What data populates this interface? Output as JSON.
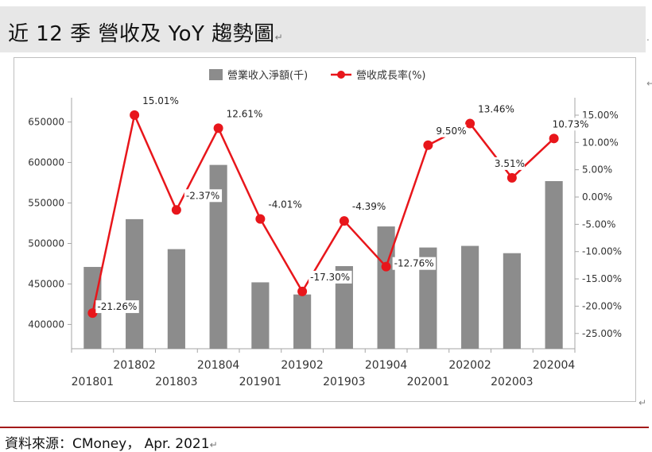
{
  "header": {
    "title": "近 12 季 營收及 YoY 趨勢圖"
  },
  "footer": {
    "source": "資料來源：CMoney， Apr. 2021"
  },
  "chart_data": {
    "type": "bar",
    "title": "",
    "categories": [
      "201801",
      "201802",
      "201803",
      "201804",
      "201901",
      "201902",
      "201903",
      "201904",
      "202001",
      "202002",
      "202003",
      "202004"
    ],
    "series": [
      {
        "name": "營業收入淨額(千)",
        "type": "bar",
        "axis": "left",
        "values": [
          471000,
          530000,
          493000,
          597000,
          452000,
          437000,
          472000,
          521000,
          495000,
          497000,
          488000,
          577000
        ]
      },
      {
        "name": "營收成長率(%)",
        "type": "line",
        "axis": "right",
        "values": [
          -21.26,
          15.01,
          -2.37,
          12.61,
          -4.01,
          -17.3,
          -4.39,
          -12.76,
          9.5,
          13.46,
          3.51,
          10.73
        ],
        "labels": [
          "-21.26%",
          "15.01%",
          "-2.37%",
          "12.61%",
          "-4.01%",
          "-17.30%",
          "-4.39%",
          "-12.76%",
          "9.50%",
          "13.46%",
          "3.51%",
          "10.73%"
        ]
      }
    ],
    "y_left": {
      "ylim": [
        370000,
        680000
      ],
      "ticks": [
        400000,
        450000,
        500000,
        550000,
        600000,
        650000
      ],
      "tick_labels": [
        "400000",
        "450000",
        "500000",
        "550000",
        "600000",
        "650000"
      ]
    },
    "y_right": {
      "ylim": [
        -27.8,
        18.2
      ],
      "ticks": [
        -25,
        -20,
        -15,
        -10,
        -5,
        0,
        5,
        10,
        15
      ],
      "tick_labels": [
        "-25.00%",
        "-20.00%",
        "-15.00%",
        "-10.00%",
        "-5.00%",
        "0.00%",
        "5.00%",
        "10.00%",
        "15.00%"
      ]
    },
    "x_tick_labels": [
      "201801",
      "201802",
      "201803",
      "201804",
      "201901",
      "201902",
      "201903",
      "201904",
      "202001",
      "202002",
      "202003",
      "202004"
    ],
    "legend": {
      "placement": "top"
    },
    "grid": false,
    "colors": {
      "bar": "#8c8c8c",
      "line": "#e8161b",
      "axis": "#a6a6a6",
      "label_bg": "#ffffff"
    }
  }
}
